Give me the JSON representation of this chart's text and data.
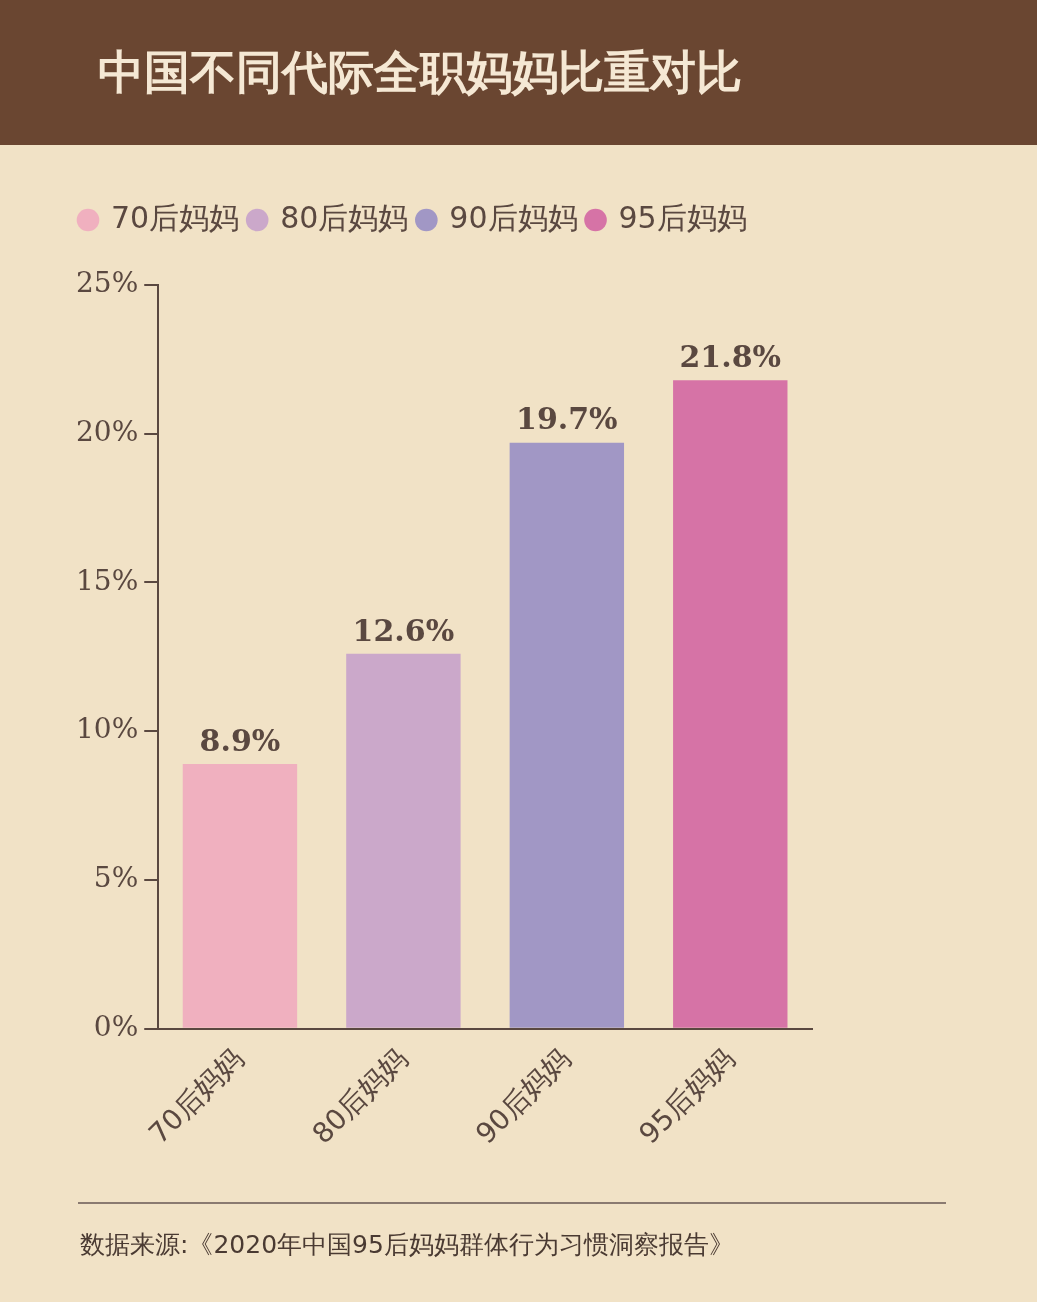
{
  "chart_data": {
    "type": "bar",
    "title": "中国不同代际全职妈妈比重对比",
    "categories": [
      "70后妈妈",
      "80后妈妈",
      "90后妈妈",
      "95后妈妈"
    ],
    "series": [
      {
        "name": "70后妈妈",
        "color": "#f0b0bf",
        "values": [
          8.9,
          null,
          null,
          null
        ],
        "value_labels": [
          "8.9%",
          null,
          null,
          null
        ]
      },
      {
        "name": "80后妈妈",
        "color": "#cba8ca",
        "values": [
          null,
          12.6,
          null,
          null
        ],
        "value_labels": [
          null,
          "12.6%",
          null,
          null
        ]
      },
      {
        "name": "90后妈妈",
        "color": "#a197c5",
        "values": [
          null,
          null,
          19.7,
          null
        ],
        "value_labels": [
          null,
          null,
          "19.7%",
          null
        ]
      },
      {
        "name": "95后妈妈",
        "color": "#d673a6",
        "values": [
          null,
          null,
          null,
          21.8
        ],
        "value_labels": [
          null,
          null,
          null,
          "21.8%"
        ]
      }
    ],
    "ylim": [
      0,
      25
    ],
    "yticks": [
      {
        "value": 0,
        "label": "0%"
      },
      {
        "value": 5,
        "label": "5%"
      },
      {
        "value": 10,
        "label": "10%"
      },
      {
        "value": 15,
        "label": "15%"
      },
      {
        "value": 20,
        "label": "20%"
      },
      {
        "value": 25,
        "label": "25%"
      }
    ],
    "grid": false,
    "legend": "top left",
    "annotations": [
      "数据来源:《2020年中国95后妈妈群体行为习惯洞察报告》"
    ]
  }
}
